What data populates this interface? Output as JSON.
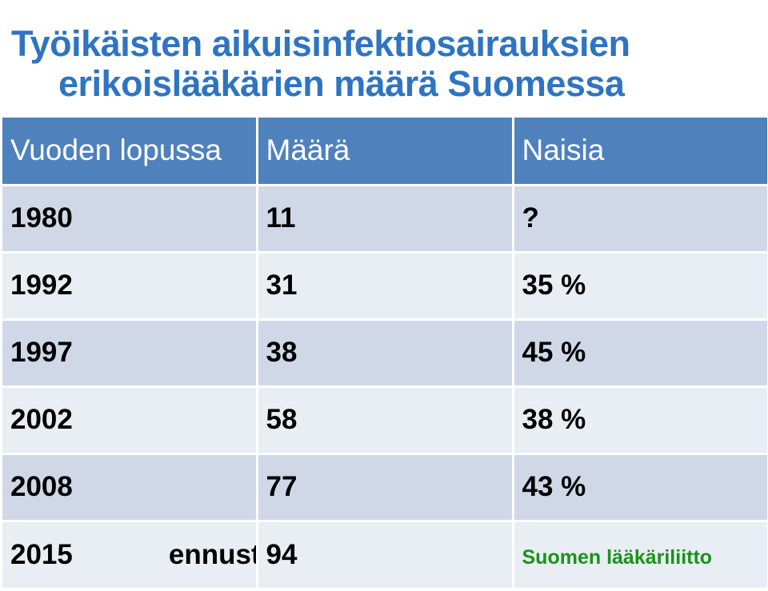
{
  "title": {
    "line1": "Työikäisten aikuisinfektiosairauksien",
    "line2": "erikoislääkärien määrä Suomessa"
  },
  "table": {
    "headers": [
      "Vuoden lopussa",
      "Määrä",
      "Naisia"
    ],
    "rows": [
      {
        "year": "1980",
        "count": "11",
        "women": "?"
      },
      {
        "year": "1992",
        "count": "31",
        "women": "35 %"
      },
      {
        "year": "1997",
        "count": "38",
        "women": "45 %"
      },
      {
        "year": "2002",
        "count": "58",
        "women": "38 %"
      },
      {
        "year": "2008",
        "count": "77",
        "women": "43 %"
      },
      {
        "year": "2015",
        "note": "ennuste",
        "count": "94"
      }
    ]
  },
  "source": "Suomen lääkäriliitto",
  "colors": {
    "title": "#2f74c2",
    "header_bg": "#4f81bd",
    "row_odd": "#d0d8e8",
    "row_even": "#e9edf4",
    "source": "#179417"
  }
}
